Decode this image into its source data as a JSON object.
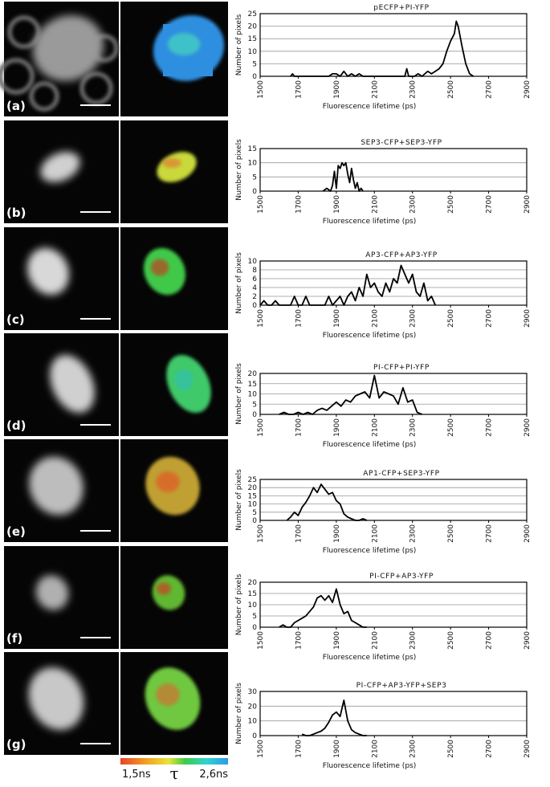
{
  "panel_labels": [
    "(a)",
    "(b)",
    "(c)",
    "(d)",
    "(e)",
    "(f)",
    "(g)"
  ],
  "colorbar": {
    "min_label": "1,5ns",
    "symbol": "τ",
    "max_label": "2,6ns"
  },
  "chart_data": [
    {
      "type": "line",
      "title": "pECFP+PI-YFP",
      "x_label": "Fluorescence lifetime (ps)",
      "y_label": "Number of pixels",
      "color": "#000000",
      "grid": true,
      "x": [
        1660,
        1670,
        1680,
        1860,
        1880,
        1900,
        1920,
        1940,
        1960,
        1980,
        2000,
        2020,
        2040,
        2260,
        2270,
        2280,
        2310,
        2330,
        2350,
        2380,
        2400,
        2420,
        2440,
        2460,
        2480,
        2500,
        2520,
        2530,
        2540,
        2560,
        2580,
        2600,
        2620
      ],
      "values": [
        0,
        1,
        0,
        0,
        1,
        1,
        0,
        2,
        0,
        1,
        0,
        1,
        0,
        0,
        3,
        0,
        0,
        1,
        0,
        2,
        1,
        2,
        3,
        5,
        10,
        14,
        17,
        22,
        20,
        12,
        5,
        1,
        0
      ],
      "xlim": [
        1500,
        2900
      ],
      "xticks": [
        1500,
        1700,
        1900,
        2100,
        2300,
        2500,
        2700,
        2900
      ],
      "ylim": [
        0,
        25
      ],
      "yticks": [
        0,
        5,
        10,
        15,
        20,
        25
      ]
    },
    {
      "type": "line",
      "title": "SEP3-CFP+SEP3-YFP",
      "x_label": "Fluorescence lifetime (ps)",
      "y_label": "Number of pixels",
      "color": "#000000",
      "grid": true,
      "x": [
        1830,
        1850,
        1870,
        1880,
        1890,
        1900,
        1910,
        1920,
        1930,
        1940,
        1950,
        1960,
        1970,
        1980,
        1990,
        2000,
        2010,
        2020,
        2030,
        2040
      ],
      "values": [
        0,
        1,
        0,
        2,
        7,
        1,
        9,
        8,
        10,
        9,
        10,
        6,
        3,
        8,
        4,
        1,
        3,
        0,
        1,
        0
      ],
      "xlim": [
        1500,
        2900
      ],
      "xticks": [
        1500,
        1700,
        1900,
        2100,
        2300,
        2500,
        2700,
        2900
      ],
      "ylim": [
        0,
        15
      ],
      "yticks": [
        0,
        5,
        10,
        15
      ]
    },
    {
      "type": "line",
      "title": "AP3-CFP+AP3-YFP",
      "x_label": "Fluorescence lifetime (ps)",
      "y_label": "Number of pixels",
      "color": "#000000",
      "grid": true,
      "x": [
        1500,
        1520,
        1540,
        1560,
        1580,
        1600,
        1620,
        1640,
        1660,
        1680,
        1700,
        1720,
        1740,
        1760,
        1780,
        1800,
        1820,
        1840,
        1860,
        1880,
        1900,
        1920,
        1940,
        1960,
        1980,
        2000,
        2020,
        2040,
        2060,
        2080,
        2100,
        2120,
        2140,
        2160,
        2180,
        2200,
        2220,
        2240,
        2260,
        2280,
        2300,
        2320,
        2340,
        2360,
        2380,
        2400,
        2420
      ],
      "values": [
        0,
        1,
        0,
        0,
        1,
        0,
        0,
        0,
        0,
        2,
        0,
        0,
        2,
        0,
        0,
        0,
        0,
        0,
        2,
        0,
        1,
        2,
        0,
        2,
        3,
        1,
        4,
        2,
        7,
        4,
        5,
        3,
        2,
        5,
        3,
        6,
        5,
        9,
        7,
        5,
        7,
        3,
        2,
        5,
        1,
        2,
        0
      ],
      "xlim": [
        1500,
        2900
      ],
      "xticks": [
        1500,
        1700,
        1900,
        2100,
        2300,
        2500,
        2700,
        2900
      ],
      "ylim": [
        0,
        10
      ],
      "yticks": [
        0,
        2,
        4,
        6,
        8,
        10
      ]
    },
    {
      "type": "line",
      "title": "PI-CFP+PI-YFP",
      "x_label": "Fluorescence lifetime (ps)",
      "y_label": "Number of pixels",
      "color": "#000000",
      "grid": true,
      "x": [
        1600,
        1625,
        1650,
        1675,
        1700,
        1725,
        1750,
        1775,
        1800,
        1825,
        1850,
        1875,
        1900,
        1925,
        1950,
        1975,
        2000,
        2025,
        2050,
        2075,
        2100,
        2125,
        2150,
        2175,
        2200,
        2225,
        2250,
        2275,
        2300,
        2325,
        2350
      ],
      "values": [
        0,
        1,
        0,
        0,
        1,
        0,
        1,
        0,
        2,
        3,
        2,
        4,
        6,
        4,
        7,
        6,
        9,
        10,
        11,
        8,
        19,
        8,
        11,
        10,
        9,
        5,
        13,
        6,
        7,
        1,
        0
      ],
      "xlim": [
        1500,
        2900
      ],
      "xticks": [
        1500,
        1700,
        1900,
        2100,
        2300,
        2500,
        2700,
        2900
      ],
      "ylim": [
        0,
        20
      ],
      "yticks": [
        0,
        5,
        10,
        15,
        20
      ]
    },
    {
      "type": "line",
      "title": "AP1-CFP+SEP3-YFP",
      "x_label": "Fluorescence lifetime (ps)",
      "y_label": "Number of pixels",
      "color": "#000000",
      "grid": true,
      "x": [
        1640,
        1660,
        1680,
        1700,
        1720,
        1740,
        1760,
        1780,
        1800,
        1820,
        1840,
        1860,
        1880,
        1900,
        1920,
        1940,
        1960,
        1980,
        2000,
        2020,
        2040,
        2060
      ],
      "values": [
        0,
        2,
        5,
        3,
        8,
        11,
        15,
        20,
        17,
        22,
        19,
        16,
        17,
        12,
        10,
        4,
        2,
        1,
        0,
        0,
        1,
        0
      ],
      "xlim": [
        1500,
        2900
      ],
      "xticks": [
        1500,
        1700,
        1900,
        2100,
        2300,
        2500,
        2700,
        2900
      ],
      "ylim": [
        0,
        25
      ],
      "yticks": [
        0,
        5,
        10,
        15,
        20,
        25
      ]
    },
    {
      "type": "line",
      "title": "PI-CFP+AP3-YFP",
      "x_label": "Fluorescence lifetime (ps)",
      "y_label": "Number of pixels",
      "color": "#000000",
      "grid": true,
      "x": [
        1600,
        1620,
        1640,
        1660,
        1680,
        1700,
        1720,
        1740,
        1760,
        1780,
        1800,
        1820,
        1840,
        1860,
        1880,
        1900,
        1920,
        1940,
        1960,
        1980,
        2000,
        2020,
        2040,
        2060
      ],
      "values": [
        0,
        1,
        0,
        0,
        2,
        3,
        4,
        5,
        7,
        9,
        13,
        14,
        12,
        14,
        11,
        17,
        10,
        6,
        7,
        3,
        2,
        1,
        0,
        0
      ],
      "xlim": [
        1500,
        2900
      ],
      "xticks": [
        1500,
        1700,
        1900,
        2100,
        2300,
        2500,
        2700,
        2900
      ],
      "ylim": [
        0,
        20
      ],
      "yticks": [
        0,
        5,
        10,
        15,
        20
      ]
    },
    {
      "type": "line",
      "title": "PI-CFP+AP3-YFP+SEP3",
      "x_label": "Fluorescence lifetime (ps)",
      "y_label": "Number of pixels",
      "color": "#000000",
      "grid": true,
      "x": [
        1720,
        1740,
        1760,
        1780,
        1800,
        1820,
        1840,
        1860,
        1880,
        1900,
        1920,
        1940,
        1960,
        1980,
        2000,
        2020,
        2040,
        2060
      ],
      "values": [
        1,
        0,
        0,
        1,
        2,
        3,
        5,
        9,
        14,
        16,
        13,
        24,
        10,
        4,
        2,
        1,
        0,
        0
      ],
      "xlim": [
        1500,
        2900
      ],
      "xticks": [
        1500,
        1700,
        1900,
        2100,
        2300,
        2500,
        2700,
        2900
      ],
      "ylim": [
        0,
        30
      ],
      "yticks": [
        0,
        10,
        20,
        30
      ]
    }
  ]
}
